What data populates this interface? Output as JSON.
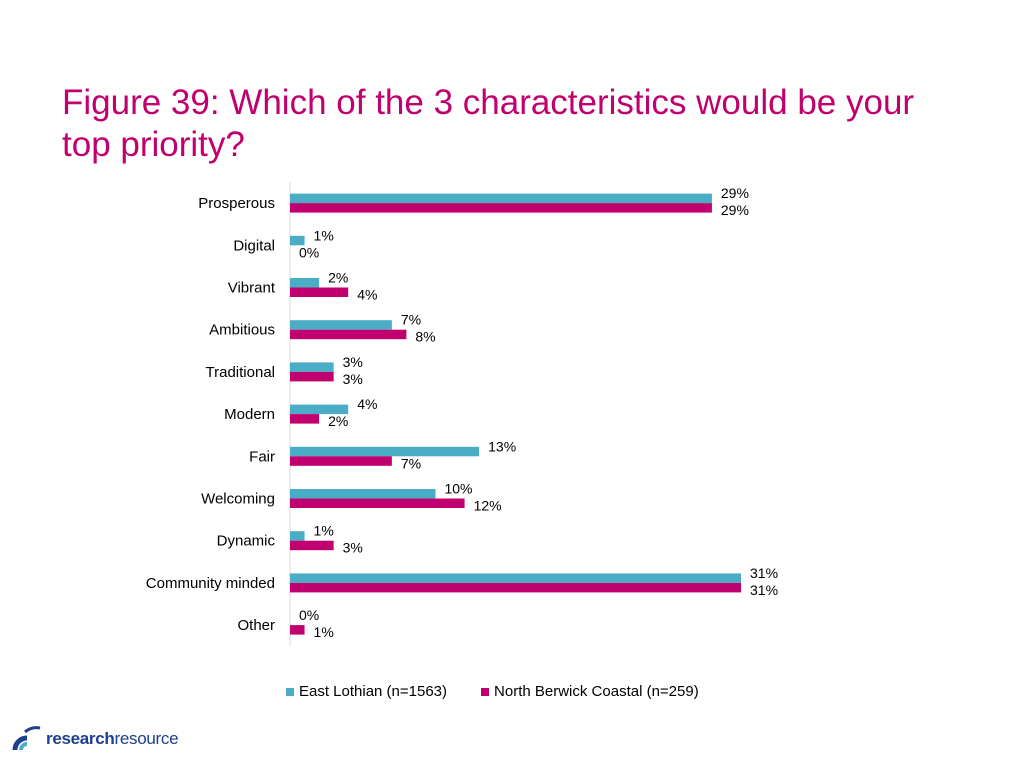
{
  "slide": {
    "title": "Figure 39: Which of the 3 characteristics would be your top priority?"
  },
  "colors": {
    "title": "#c0006f",
    "series_1": "#4bacc6",
    "series_2": "#c0006f",
    "logo": "#1e3f8f"
  },
  "logo": {
    "bold": "research",
    "light": "resource"
  },
  "chart_data": {
    "type": "bar",
    "orientation": "horizontal",
    "categories": [
      "Prosperous",
      "Digital",
      "Vibrant",
      "Ambitious",
      "Traditional",
      "Modern",
      "Fair",
      "Welcoming",
      "Dynamic",
      "Community minded",
      "Other"
    ],
    "series": [
      {
        "name": "East Lothian (n=1563)",
        "values": [
          29,
          1,
          2,
          7,
          3,
          4,
          13,
          10,
          1,
          31,
          0
        ]
      },
      {
        "name": "North Berwick Coastal (n=259)",
        "values": [
          29,
          0,
          4,
          8,
          3,
          2,
          7,
          12,
          3,
          31,
          1
        ]
      }
    ],
    "value_suffix": "%",
    "xlim": [
      0,
      35
    ],
    "grid": false,
    "legend_position": "bottom"
  }
}
